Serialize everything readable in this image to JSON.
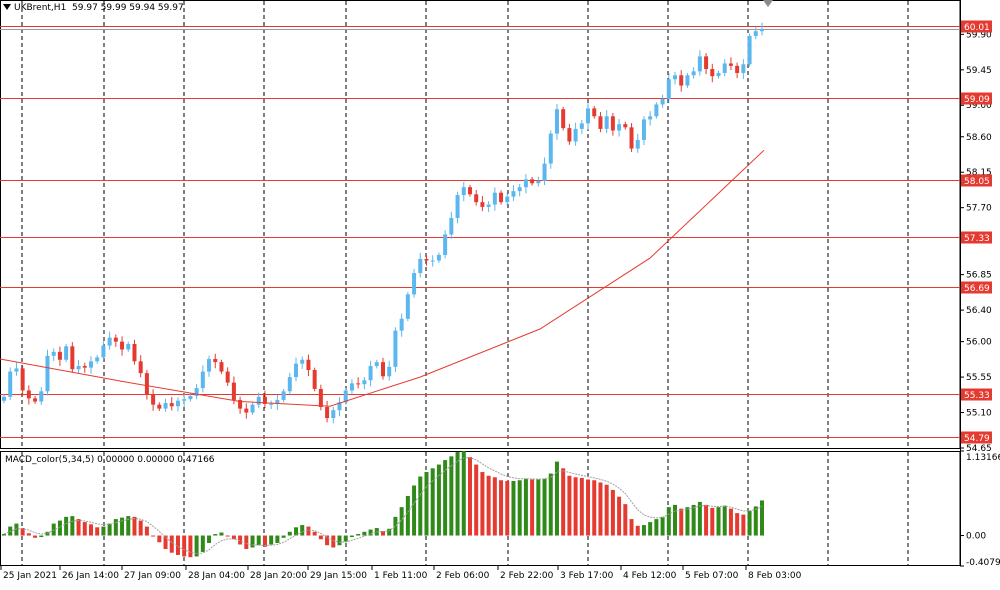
{
  "header": {
    "symbol": "UKBrent,H1",
    "ohlc": "59.97 59.99 59.94 59.97"
  },
  "macd": {
    "label": "MACD_color(5,34,5) 0.00000 0.00000 0.47166",
    "ymax_label": "1.13166",
    "zero_label": "0.00",
    "ymin_label": "-0.40794"
  },
  "price_axis": {
    "ticks": [
      "59.90",
      "59.45",
      "59.00",
      "58.60",
      "58.15",
      "57.70",
      "57.30",
      "56.85",
      "56.40",
      "56.00",
      "55.55",
      "55.10",
      "54.65"
    ]
  },
  "horizontal_levels": [
    {
      "label": "60.01",
      "value": 60.01
    },
    {
      "label": "59.09",
      "value": 59.09
    },
    {
      "label": "58.05",
      "value": 58.05
    },
    {
      "label": "57.33",
      "value": 57.33
    },
    {
      "label": "56.69",
      "value": 56.69
    },
    {
      "label": "55.33",
      "value": 55.33
    },
    {
      "label": "54.79",
      "value": 54.79
    }
  ],
  "time_axis": {
    "labels": [
      "25 Jan 2021",
      "26 Jan 14:00",
      "27 Jan 09:00",
      "28 Jan 04:00",
      "28 Jan 20:00",
      "29 Jan 15:00",
      "1 Feb 11:00",
      "2 Feb 06:00",
      "2 Feb 22:00",
      "3 Feb 17:00",
      "4 Feb 12:00",
      "5 Feb 07:00",
      "8 Feb 03:00"
    ]
  },
  "colors": {
    "bull": "#5bb7ee",
    "bear": "#e53a30",
    "level_line": "#e53a30",
    "level_badge": "#e53a30",
    "ma_line": "#e53a30",
    "grid": "#000000",
    "macd_pos_up": "#2f8a1a",
    "macd_neg": "#e53a30",
    "signal": "#a0a0a0"
  },
  "chart_data": {
    "type": "candlestick",
    "price_range": [
      54.65,
      60.12
    ],
    "closes": [
      55.3,
      55.62,
      55.66,
      55.38,
      55.28,
      55.24,
      55.37,
      55.82,
      55.87,
      55.77,
      55.94,
      55.65,
      55.69,
      55.67,
      55.75,
      55.8,
      55.95,
      56.05,
      56.0,
      55.9,
      55.97,
      55.75,
      55.6,
      55.33,
      55.2,
      55.15,
      55.22,
      55.18,
      55.25,
      55.27,
      55.31,
      55.41,
      55.62,
      55.78,
      55.74,
      55.62,
      55.48,
      55.26,
      55.15,
      55.1,
      55.2,
      55.3,
      55.21,
      55.21,
      55.26,
      55.37,
      55.55,
      55.72,
      55.77,
      55.64,
      55.4,
      55.17,
      55.03,
      55.13,
      55.23,
      55.38,
      55.47,
      55.46,
      55.51,
      55.69,
      55.74,
      55.56,
      55.68,
      56.14,
      56.29,
      56.6,
      56.87,
      57.05,
      57.03,
      57.03,
      57.1,
      57.36,
      57.57,
      57.86,
      57.96,
      57.87,
      57.77,
      57.71,
      57.74,
      57.89,
      57.77,
      57.84,
      57.91,
      57.96,
      58.06,
      58.01,
      58.04,
      58.26,
      58.64,
      58.95,
      58.71,
      58.54,
      58.7,
      58.77,
      58.96,
      58.86,
      58.7,
      58.86,
      58.68,
      58.76,
      58.72,
      58.45,
      58.56,
      58.82,
      58.86,
      59.01,
      59.08,
      59.33,
      59.38,
      59.25,
      59.38,
      59.43,
      59.62,
      59.46,
      59.37,
      59.41,
      59.53,
      59.5,
      59.41,
      59.52,
      59.88,
      59.94,
      59.97
    ],
    "levels": [
      60.01,
      59.09,
      58.05,
      57.33,
      56.69,
      55.33,
      54.79
    ],
    "time_labels": [
      "25 Jan 2021",
      "26 Jan 14:00",
      "27 Jan 09:00",
      "28 Jan 04:00",
      "28 Jan 20:00",
      "29 Jan 15:00",
      "1 Feb 11:00",
      "2 Feb 06:00",
      "2 Feb 22:00",
      "3 Feb 17:00",
      "4 Feb 12:00",
      "5 Feb 07:00",
      "8 Feb 03:00"
    ],
    "macd_range": [
      -0.40794,
      1.13166
    ],
    "macd_values": [
      0.02,
      0.12,
      0.16,
      0.1,
      0.03,
      -0.03,
      -0.02,
      0.05,
      0.16,
      0.2,
      0.25,
      0.26,
      0.22,
      0.18,
      0.15,
      0.11,
      0.12,
      0.16,
      0.22,
      0.24,
      0.26,
      0.25,
      0.2,
      0.12,
      0.0,
      -0.09,
      -0.18,
      -0.23,
      -0.26,
      -0.28,
      -0.29,
      -0.28,
      -0.22,
      -0.1,
      0.02,
      0.04,
      0.0,
      -0.05,
      -0.12,
      -0.18,
      -0.16,
      -0.13,
      -0.15,
      -0.12,
      -0.1,
      -0.03,
      0.05,
      0.11,
      0.14,
      0.12,
      0.05,
      -0.05,
      -0.13,
      -0.16,
      -0.13,
      -0.08,
      -0.02,
      0.02,
      0.05,
      0.08,
      0.1,
      0.06,
      0.09,
      0.25,
      0.38,
      0.53,
      0.67,
      0.79,
      0.85,
      0.9,
      0.95,
      1.01,
      1.06,
      1.12,
      1.13,
      1.05,
      0.95,
      0.85,
      0.8,
      0.78,
      0.74,
      0.73,
      0.73,
      0.74,
      0.76,
      0.75,
      0.75,
      0.76,
      0.83,
      0.99,
      0.9,
      0.8,
      0.78,
      0.77,
      0.75,
      0.74,
      0.71,
      0.68,
      0.61,
      0.52,
      0.42,
      0.22,
      0.13,
      0.14,
      0.18,
      0.22,
      0.25,
      0.38,
      0.41,
      0.36,
      0.38,
      0.41,
      0.45,
      0.41,
      0.37,
      0.38,
      0.4,
      0.36,
      0.3,
      0.28,
      0.33,
      0.39,
      0.47
    ],
    "ma_values": [
      55.78,
      55.5,
      55.24,
      55.18,
      55.55,
      56.16,
      57.06,
      58.43
    ]
  }
}
